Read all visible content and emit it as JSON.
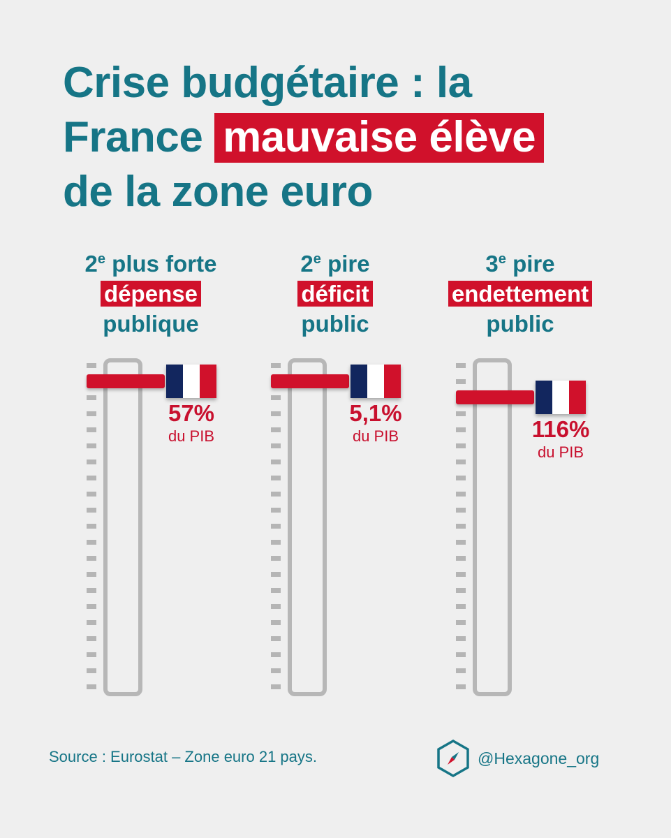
{
  "title": {
    "line1": "Crise budgétaire : la",
    "line2_pre": "France",
    "line2_highlight": "mauvaise élève",
    "line3": "de la zone euro"
  },
  "columns": [
    {
      "rank": "2",
      "rank_sup": "e",
      "head_after": "plus forte",
      "highlight": "dépense",
      "last": "publique",
      "value": "57%",
      "unit": "du PIB"
    },
    {
      "rank": "2",
      "rank_sup": "e",
      "head_after": "pire",
      "highlight": "déficit",
      "last": "public",
      "value": "5,1%",
      "unit": "du PIB"
    },
    {
      "rank": "3",
      "rank_sup": "e",
      "head_after": "pire",
      "highlight": "endettement",
      "last": "public",
      "value": "116%",
      "unit": "du PIB"
    }
  ],
  "chart_data": {
    "type": "bar",
    "categories": [
      "dépense publique",
      "déficit public",
      "endettement public"
    ],
    "values": [
      57,
      5.1,
      116
    ],
    "ranks": [
      2,
      2,
      3
    ],
    "rank_out_of": 21,
    "unit": "du PIB"
  },
  "source": "Source : Eurostat – Zone euro 21 pays.",
  "brand": {
    "handle": "@Hexagone_org",
    "icon": "compass-hexagon-icon"
  },
  "colors": {
    "accent": "#d0112b",
    "teal": "#167586",
    "background": "#efefef",
    "gauge": "#b7b7b7"
  }
}
